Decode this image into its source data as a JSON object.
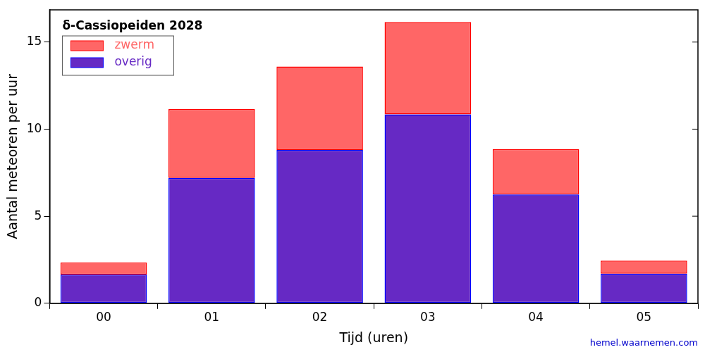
{
  "chart_data": {
    "type": "bar",
    "title": "δ-Cassiopeiden 2028",
    "x_label": "Tijd (uren)",
    "y_label": "Aantal meteoren per uur",
    "categories": [
      "00",
      "01",
      "02",
      "03",
      "04",
      "05"
    ],
    "series": [
      {
        "name": "zwerm",
        "color": "#ff6666",
        "values": [
          0.7,
          3.95,
          4.8,
          5.3,
          2.6,
          0.75
        ]
      },
      {
        "name": "overig",
        "color": "#6629c4",
        "values": [
          1.65,
          7.2,
          8.8,
          10.85,
          6.25,
          1.7
        ]
      }
    ],
    "stacked": true,
    "legend": "upper left",
    "grid": false,
    "ylim": [
      0,
      16.85
    ],
    "yticks": [
      0,
      5,
      10,
      15
    ],
    "source": "hemel.waarnemen.com"
  }
}
